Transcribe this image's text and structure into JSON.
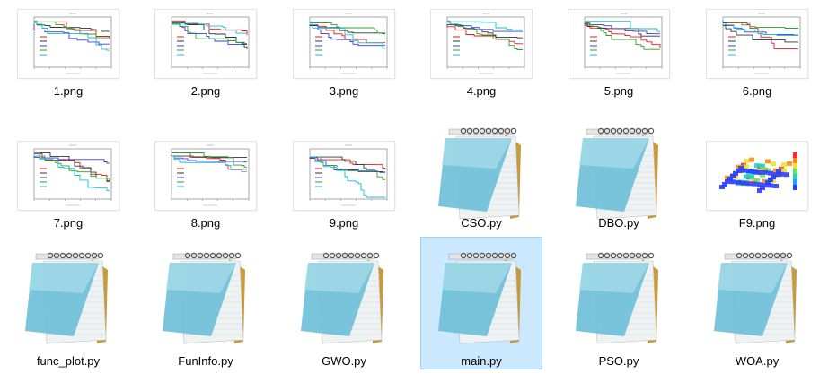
{
  "files": [
    {
      "name": "1.png",
      "kind": "chart",
      "selected": false
    },
    {
      "name": "2.png",
      "kind": "chart",
      "selected": false
    },
    {
      "name": "3.png",
      "kind": "chart",
      "selected": false
    },
    {
      "name": "4.png",
      "kind": "chart",
      "selected": false
    },
    {
      "name": "5.png",
      "kind": "chart",
      "selected": false
    },
    {
      "name": "6.png",
      "kind": "chart",
      "selected": false
    },
    {
      "name": "7.png",
      "kind": "chart",
      "selected": false
    },
    {
      "name": "8.png",
      "kind": "chart",
      "selected": false
    },
    {
      "name": "9.png",
      "kind": "chart",
      "selected": false
    },
    {
      "name": "CSO.py",
      "kind": "notepad",
      "selected": false
    },
    {
      "name": "DBO.py",
      "kind": "notepad",
      "selected": false
    },
    {
      "name": "F9.png",
      "kind": "surface",
      "selected": false
    },
    {
      "name": "func_plot.py",
      "kind": "notepad",
      "selected": false
    },
    {
      "name": "FunInfo.py",
      "kind": "notepad",
      "selected": false
    },
    {
      "name": "GWO.py",
      "kind": "notepad",
      "selected": false
    },
    {
      "name": "main.py",
      "kind": "notepad",
      "selected": true
    },
    {
      "name": "PSO.py",
      "kind": "notepad",
      "selected": false
    },
    {
      "name": "WOA.py",
      "kind": "notepad",
      "selected": false
    }
  ],
  "colors": {
    "selection_fill": "#cce8ff",
    "selection_border": "#99d1ff",
    "series": [
      "#e41a1c",
      "#333333",
      "#3a3ae0",
      "#2ca02c",
      "#17becf"
    ]
  }
}
